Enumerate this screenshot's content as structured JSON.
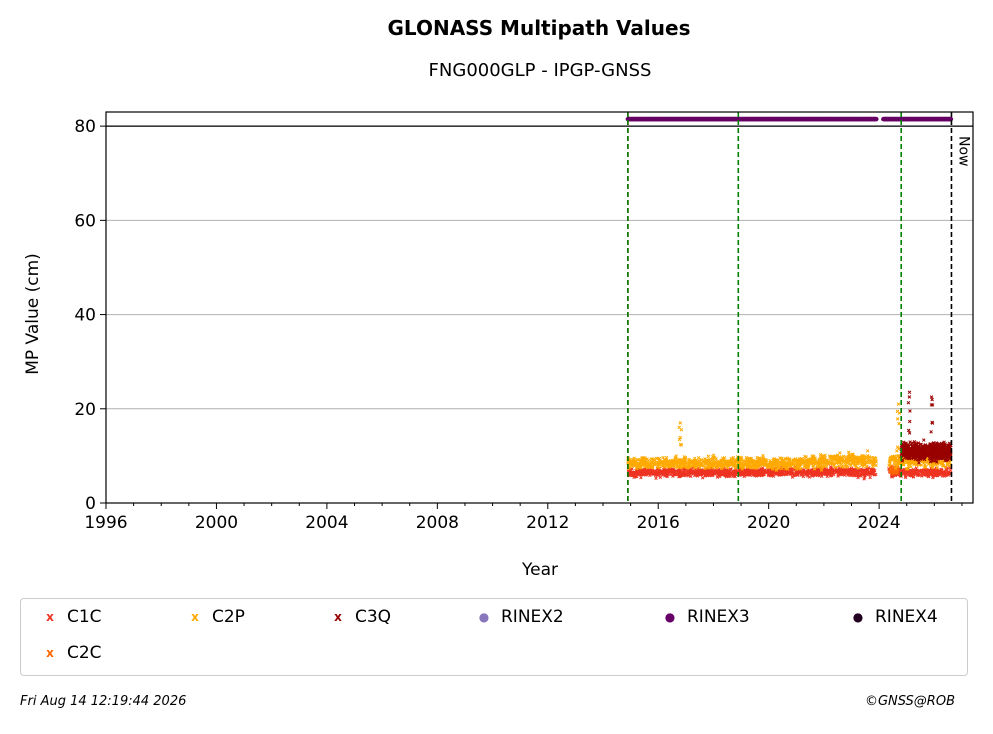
{
  "chart_data": {
    "type": "scatter",
    "title": "GLONASS Multipath Values",
    "subtitle": "FNG000GLP - IPGP-GNSS",
    "xlabel": "Year",
    "ylabel": "MP Value (cm)",
    "xlim": [
      1996,
      2027.4
    ],
    "ylim": [
      0,
      83
    ],
    "x_ticks": [
      "1996",
      "2000",
      "2004",
      "2008",
      "2012",
      "2016",
      "2020",
      "2024"
    ],
    "y_ticks": [
      "0",
      "20",
      "40",
      "60",
      "80"
    ],
    "grid": "horizontal",
    "reference_line_y": 80,
    "vertical_lines": [
      {
        "x": 2014.9,
        "color": "#cc0000",
        "style": "dashed"
      },
      {
        "x": 2014.9,
        "color": "#008000",
        "style": "dashed"
      },
      {
        "x": 2018.9,
        "color": "#008000",
        "style": "dashed"
      },
      {
        "x": 2024.8,
        "color": "#008000",
        "style": "dashed"
      },
      {
        "x": 2026.62,
        "color": "#000000",
        "style": "dashed",
        "label": "Now"
      }
    ],
    "series": [
      {
        "name": "C1C",
        "color": "#ee3322",
        "marker": "x",
        "x_range": [
          2014.9,
          2026.6
        ],
        "typical_y": 6.5,
        "spread": 1.5
      },
      {
        "name": "C2C",
        "color": "#ff6600",
        "marker": "x",
        "x_range": [
          2024.4,
          2024.7
        ],
        "typical_y": 7,
        "spread": 1.5
      },
      {
        "name": "C2P",
        "color": "#ffaa00",
        "marker": "x",
        "x_range": [
          2014.9,
          2026.6
        ],
        "typical_y": 8.5,
        "spread": 2,
        "peaks": [
          [
            2016.8,
            17
          ],
          [
            2024.7,
            21
          ]
        ]
      },
      {
        "name": "C3Q",
        "color": "#990000",
        "marker": "x",
        "x_range": [
          2024.8,
          2026.6
        ],
        "typical_y": 11,
        "spread": 3,
        "peaks": [
          [
            2025.1,
            23.5
          ],
          [
            2025.9,
            22.5
          ]
        ]
      },
      {
        "name": "RINEX2",
        "color": "#8877bb",
        "marker": "o"
      },
      {
        "name": "RINEX3",
        "color": "#660066",
        "marker": "o",
        "x_range": [
          2014.9,
          2026.6
        ],
        "y": 81.5
      },
      {
        "name": "RINEX4",
        "color": "#220022",
        "marker": "o"
      }
    ]
  },
  "legend": [
    {
      "label": "C1C",
      "color": "#ee3322",
      "glyph": "x"
    },
    {
      "label": "C2P",
      "color": "#ffaa00",
      "glyph": "x"
    },
    {
      "label": "C3Q",
      "color": "#990000",
      "glyph": "x"
    },
    {
      "label": "RINEX2",
      "color": "#8877bb",
      "glyph": "●"
    },
    {
      "label": "RINEX3",
      "color": "#660066",
      "glyph": "●"
    },
    {
      "label": "RINEX4",
      "color": "#220022",
      "glyph": "●"
    },
    {
      "label": "C2C",
      "color": "#ff6600",
      "glyph": "x"
    }
  ],
  "now_label": "Now",
  "footer": {
    "timestamp": "Fri Aug 14 12:19:44 2026",
    "credit": "©GNSS@ROB"
  }
}
